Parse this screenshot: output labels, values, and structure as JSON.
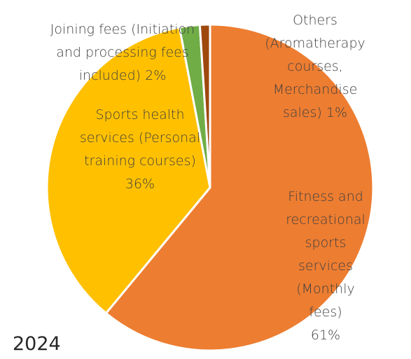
{
  "chart_data": {
    "type": "pie",
    "title": "2024",
    "categories": [
      "Fitness and\nrecreational sports\nservices (Monthly fees)",
      "Sports health\nservices (Personal\ntraining courses)",
      "Joining fees (Initiation\nand processing fees\nincluded)",
      "Others\n(Aromatherapy\ncourses,\nMerchandise\nsales)"
    ],
    "values": [
      61,
      36,
      2,
      1
    ],
    "value_labels": [
      "61%",
      "36%",
      "2%",
      "1%"
    ],
    "colors": [
      "#ed7d31",
      "#ffc000",
      "#70ad47",
      "#9e480e"
    ]
  }
}
